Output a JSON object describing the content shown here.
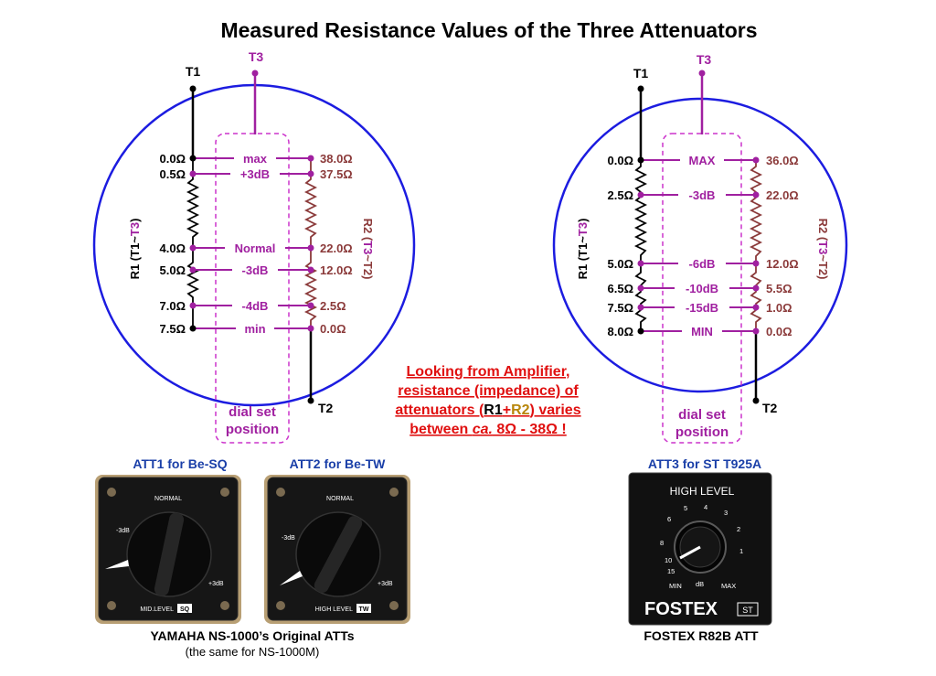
{
  "title": "Measured Resistance Values of the Three Attenuators",
  "colors": {
    "circle": "#1c1ce0",
    "dial": "#a020a0",
    "r1": "#000000",
    "r2": "#8b3a3a",
    "note": "#e01010",
    "att_title": "#1a3fa8"
  },
  "left_diagram": {
    "t1": "T1",
    "t2": "T2",
    "t3": "T3",
    "r1_axis": {
      "a": "R1 (T1~",
      "b": "T3",
      "c": ")"
    },
    "r2_axis": {
      "a": "R2 (",
      "b": "T3",
      "c": "~T2)"
    },
    "dial_set": [
      "dial set",
      "position"
    ],
    "rows": [
      {
        "r1": "0.0Ω",
        "dial": "max",
        "r2": "38.0Ω"
      },
      {
        "r1": "0.5Ω",
        "dial": "+3dB",
        "r2": "37.5Ω"
      },
      {
        "r1": "4.0Ω",
        "dial": "Normal",
        "r2": "22.0Ω"
      },
      {
        "r1": "5.0Ω",
        "dial": "-3dB",
        "r2": "12.0Ω"
      },
      {
        "r1": "7.0Ω",
        "dial": "-4dB",
        "r2": "2.5Ω"
      },
      {
        "r1": "7.5Ω",
        "dial": "min",
        "r2": "0.0Ω"
      }
    ]
  },
  "right_diagram": {
    "t1": "T1",
    "t2": "T2",
    "t3": "T3",
    "r1_axis": {
      "a": "R1 (T1~",
      "b": "T3",
      "c": ")"
    },
    "r2_axis": {
      "a": "R2 (",
      "b": "T3",
      "c": "~T2)"
    },
    "dial_set": [
      "dial set",
      "position"
    ],
    "rows": [
      {
        "r1": "0.0Ω",
        "dial": "MAX",
        "r2": "36.0Ω"
      },
      {
        "r1": "2.5Ω",
        "dial": "-3dB",
        "r2": "22.0Ω"
      },
      {
        "r1": "5.0Ω",
        "dial": "-6dB",
        "r2": "12.0Ω"
      },
      {
        "r1": "6.5Ω",
        "dial": "-10dB",
        "r2": "5.5Ω"
      },
      {
        "r1": "7.5Ω",
        "dial": "-15dB",
        "r2": "1.0Ω"
      },
      {
        "r1": "8.0Ω",
        "dial": "MIN",
        "r2": "0.0Ω"
      }
    ]
  },
  "note": {
    "line1": "Looking from Amplifier,",
    "line2": "resistance (impedance) of",
    "line3_a": "attenuators (",
    "line3_r1": "R1",
    "line3_plus": "+",
    "line3_r2": "R2",
    "line3_b": ") varies",
    "line4_a": "between ",
    "line4_ca": "ca.",
    "line4_b": " 8Ω - 38Ω !"
  },
  "photos": {
    "att1_title": "ATT1 for Be-SQ",
    "att2_title": "ATT2 for Be-TW",
    "att3_title": "ATT3 for ST T925A",
    "att1": {
      "normal": "NORMAL",
      "minus": "-3dB",
      "plus": "+3dB",
      "label": "MID.LEVEL",
      "badge": "SQ"
    },
    "att2": {
      "normal": "NORMAL",
      "minus": "-3dB",
      "plus": "+3dB",
      "label": "HIGH LEVEL",
      "badge": "TW"
    },
    "att3": {
      "header": "HIGH LEVEL",
      "ticks": [
        "4",
        "3",
        "2",
        "1",
        "5",
        "6",
        "8",
        "10",
        "15"
      ],
      "min": "MIN",
      "db": "dB",
      "max": "MAX",
      "brand": "FOSTEX",
      "badge": "ST"
    },
    "yamaha_caption": "YAMAHA NS-1000’s Original ATTs",
    "yamaha_sub": "(the same for NS-1000M)",
    "fostex_caption": "FOSTEX R82B ATT"
  }
}
